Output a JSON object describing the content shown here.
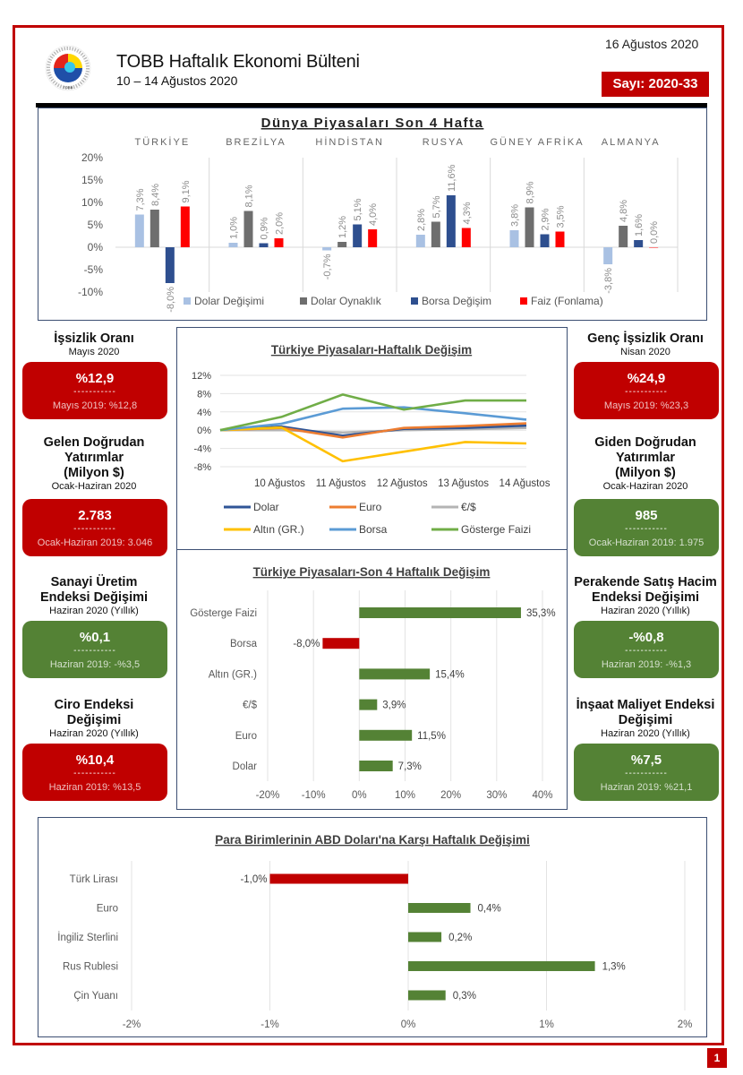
{
  "header": {
    "title": "TOBB Haftalık Ekonomi Bülteni",
    "subtitle": "10 – 14 Ağustos 2020",
    "date": "16 Ağustos 2020",
    "issue": "Sayı: 2020-33",
    "logo_text": "TOBB",
    "logo_icon": "tobb-logo-icon"
  },
  "page_number": "1",
  "colors": {
    "brand_red": "#c00000",
    "positive_green": "#548235",
    "panel_border": "#3c4f73"
  },
  "kpis_left": [
    {
      "title": "İşsizlik Oranı",
      "period": "Mayıs 2020",
      "value": "%12,9",
      "dashes": "-----------",
      "previous": "Mayıs 2019: %12,8",
      "status": "red"
    },
    {
      "title": "Gelen Doğrudan Yatırımlar (Milyon $)",
      "period": "Ocak-Haziran 2020",
      "value": "2.783",
      "dashes": "-----------",
      "previous": "Ocak-Haziran 2019: 3.046",
      "status": "red"
    },
    {
      "title": "Sanayi Üretim Endeksi Değişimi",
      "period": "Haziran 2020 (Yıllık)",
      "value": "%0,1",
      "dashes": "-----------",
      "previous": "Haziran 2019: -%3,5",
      "status": "green"
    },
    {
      "title": "Ciro Endeksi Değişimi",
      "period": "Haziran 2020 (Yıllık)",
      "value": "%10,4",
      "dashes": "-----------",
      "previous": "Haziran 2019: %13,5",
      "status": "red"
    }
  ],
  "kpis_right": [
    {
      "title": "Genç İşsizlik Oranı",
      "period": "Nisan 2020",
      "value": "%24,9",
      "dashes": "-----------",
      "previous": "Mayıs 2019: %23,3",
      "status": "red"
    },
    {
      "title": "Giden Doğrudan Yatırımlar (Milyon $)",
      "period": "Ocak-Haziran 2020",
      "value": "985",
      "dashes": "-----------",
      "previous": "Ocak-Haziran 2019: 1.975",
      "status": "green"
    },
    {
      "title": "Perakende Satış Hacim Endeksi Değişimi",
      "period": "Haziran 2020 (Yıllık)",
      "value": "-%0,8",
      "dashes": "-----------",
      "previous": "Haziran 2019: -%1,3",
      "status": "green"
    },
    {
      "title": "İnşaat Maliyet Endeksi Değişimi",
      "period": "Haziran 2020 (Yıllık)",
      "value": "%7,5",
      "dashes": "-----------",
      "previous": "Haziran 2019: %21,1",
      "status": "green"
    }
  ],
  "chart_data": [
    {
      "id": "world",
      "type": "bar",
      "title": "Dünya Piyasaları Son 4 Hafta",
      "categories": [
        "TÜRKİYE",
        "BREZİLYA",
        "HİNDİSTAN",
        "RUSYA",
        "GÜNEY AFRİKA",
        "ALMANYA"
      ],
      "series": [
        {
          "name": "Dolar Değişimi",
          "color": "#a9c1e3",
          "values": [
            7.3,
            1.0,
            -0.7,
            2.8,
            3.8,
            -3.8
          ]
        },
        {
          "name": "Dolar Oynaklık",
          "color": "#6e6e6e",
          "values": [
            8.4,
            8.1,
            1.2,
            5.7,
            8.9,
            4.8
          ]
        },
        {
          "name": "Borsa Değişim",
          "color": "#2e4f8f",
          "values": [
            -8.0,
            0.9,
            5.1,
            11.6,
            2.9,
            1.6
          ]
        },
        {
          "name": "Faiz (Fonlama)",
          "color": "#ff0000",
          "values": [
            9.1,
            2.0,
            4.0,
            4.3,
            3.5,
            0.0
          ]
        }
      ],
      "labels": [
        [
          "7,3%",
          "1,0%",
          "-0,7%",
          "2,8%",
          "3,8%",
          "-3,8%"
        ],
        [
          "8,4%",
          "8,1%",
          "1,2%",
          "5,7%",
          "8,9%",
          "4,8%"
        ],
        [
          "-8,0%",
          "0,9%",
          "5,1%",
          "11,6%",
          "2,9%",
          "1,6%"
        ],
        [
          "9,1%",
          "2,0%",
          "4,0%",
          "4,3%",
          "3,5%",
          "0,0%"
        ]
      ],
      "yticks": [
        "20%",
        "15%",
        "10%",
        "5%",
        "0%",
        "-5%",
        "-10%"
      ],
      "ytick_values": [
        20,
        15,
        10,
        5,
        0,
        -5,
        -10
      ],
      "ylim": [
        -10,
        20
      ],
      "legend": "bottom"
    },
    {
      "id": "weekly",
      "type": "line",
      "title": "Türkiye Piyasaları-Haftalık Değişim",
      "x": [
        "",
        "10 Ağustos",
        "11 Ağustos",
        "12 Ağustos",
        "13 Ağustos",
        "14 Ağustos"
      ],
      "series": [
        {
          "name": "Dolar",
          "color": "#2f5597",
          "values": [
            0,
            0.8,
            -1.2,
            0.3,
            0.5,
            1.0
          ]
        },
        {
          "name": "Euro",
          "color": "#ed7d31",
          "values": [
            0,
            0.5,
            -1.6,
            0.5,
            0.9,
            1.5
          ]
        },
        {
          "name": "€/$",
          "color": "#b4b4b4",
          "values": [
            0,
            0.0,
            -0.5,
            0.0,
            0.2,
            0.5
          ]
        },
        {
          "name": "Altın (GR.)",
          "color": "#ffc000",
          "values": [
            0,
            0.6,
            -6.8,
            -4.7,
            -2.6,
            -2.9
          ]
        },
        {
          "name": "Borsa",
          "color": "#5b9bd5",
          "values": [
            0,
            1.4,
            4.7,
            5.0,
            3.7,
            2.3
          ]
        },
        {
          "name": "Gösterge Faizi",
          "color": "#70ad47",
          "values": [
            0,
            2.9,
            7.8,
            4.5,
            6.5,
            6.5
          ]
        }
      ],
      "yticks": [
        "12%",
        "8%",
        "4%",
        "0%",
        "-4%",
        "-8%"
      ],
      "ytick_values": [
        12,
        8,
        4,
        0,
        -4,
        -8
      ],
      "ylim": [
        -8,
        12
      ],
      "legend": "bottom"
    },
    {
      "id": "four_week",
      "type": "bar",
      "orientation": "horizontal",
      "title": "Türkiye Piyasaları-Son 4 Haftalık Değişim",
      "categories": [
        "Gösterge Faizi",
        "Borsa",
        "Altın (GR.)",
        "€/$",
        "Euro",
        "Dolar"
      ],
      "values": [
        35.3,
        -8.0,
        15.4,
        3.9,
        11.5,
        7.3
      ],
      "labels": [
        "35,3%",
        "-8,0%",
        "15,4%",
        "3,9%",
        "11,5%",
        "7,3%"
      ],
      "xticks": [
        "-20%",
        "-10%",
        "0%",
        "10%",
        "20%",
        "30%",
        "40%"
      ],
      "xtick_values": [
        -20,
        -10,
        0,
        10,
        20,
        30,
        40
      ],
      "xlim": [
        -20,
        40
      ],
      "positive_color": "#548235",
      "negative_color": "#c00000"
    },
    {
      "id": "currencies",
      "type": "bar",
      "orientation": "horizontal",
      "title": "Para Birimlerinin ABD Doları'na Karşı Haftalık Değişimi",
      "categories": [
        "Türk Lirası",
        "Euro",
        "İngiliz Sterlini",
        "Rus Rublesi",
        "Çin Yuanı"
      ],
      "values": [
        -1.0,
        0.45,
        0.24,
        1.35,
        0.27
      ],
      "labels": [
        "-1,0%",
        "0,4%",
        "0,2%",
        "1,3%",
        "0,3%"
      ],
      "xticks": [
        "-2%",
        "-1%",
        "0%",
        "1%",
        "2%"
      ],
      "xtick_values": [
        -2,
        -1,
        0,
        1,
        2
      ],
      "xlim": [
        -2,
        2
      ],
      "positive_color": "#548235",
      "negative_color": "#c00000"
    }
  ]
}
